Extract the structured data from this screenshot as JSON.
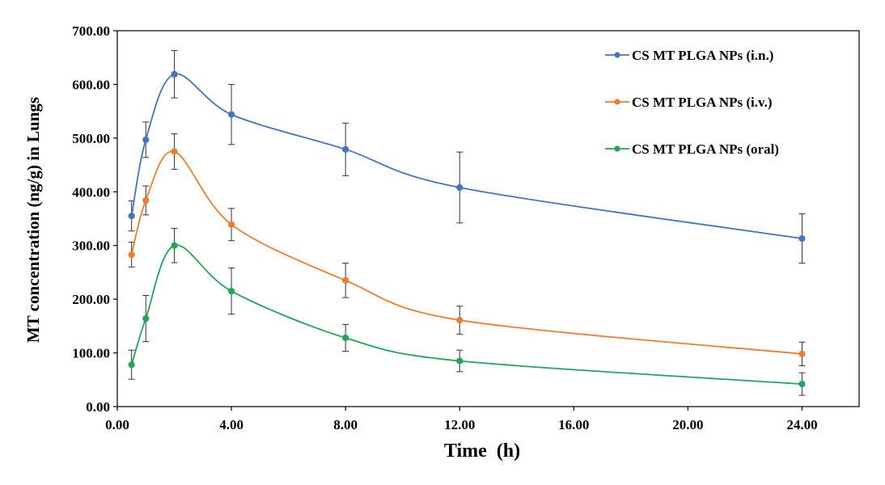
{
  "chart_data": {
    "type": "line",
    "title": "",
    "xlabel": "Time  (h)",
    "ylabel": "MT concentration (ng/g) in Lungs",
    "xlim": [
      0,
      26
    ],
    "ylim": [
      0,
      700
    ],
    "x_ticks": [
      0,
      4,
      8,
      12,
      16,
      20,
      24
    ],
    "x_tick_labels": [
      "0.00",
      "4.00",
      "8.00",
      "12.00",
      "16.00",
      "20.00",
      "24.00"
    ],
    "y_ticks": [
      0,
      100,
      200,
      300,
      400,
      500,
      600,
      700
    ],
    "y_tick_labels": [
      "0.00",
      "100.00",
      "200.00",
      "300.00",
      "400.00",
      "500.00",
      "600.00",
      "700.00"
    ],
    "grid": false,
    "legend_position": "top-right",
    "x": [
      0.5,
      1,
      2,
      4,
      8,
      12,
      24
    ],
    "series": [
      {
        "name": "CS MT PLGA NPs (i.n.)",
        "color": "#4472C4",
        "values": [
          355,
          497,
          619,
          544,
          479,
          408,
          313
        ],
        "errors": [
          28,
          33,
          44,
          56,
          49,
          66,
          46
        ]
      },
      {
        "name": "CS MT PLGA NPs (i.v.)",
        "color": "#ED7D31",
        "values": [
          283,
          384,
          475,
          339,
          235,
          161,
          98
        ],
        "errors": [
          23,
          27,
          33,
          30,
          32,
          26,
          22
        ]
      },
      {
        "name": "CS MT PLGA NPs (oral)",
        "color": "#21A656",
        "values": [
          78,
          164,
          300,
          215,
          128,
          85,
          42
        ],
        "errors": [
          27,
          43,
          32,
          43,
          25,
          20,
          21
        ]
      }
    ]
  }
}
